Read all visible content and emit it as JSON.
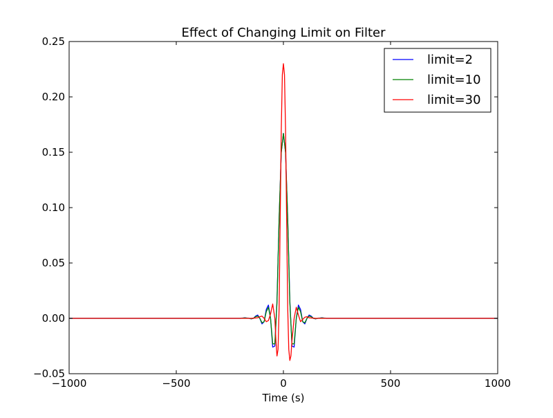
{
  "chart_data": {
    "type": "line",
    "title": "Effect of Changing Limit on Filter",
    "xlabel": "Time (s)",
    "ylabel": "",
    "xlim": [
      -1000,
      1000
    ],
    "ylim": [
      -0.05,
      0.25
    ],
    "xticks": [
      -1000,
      -500,
      0,
      500,
      1000
    ],
    "xtick_labels": [
      "−1000",
      "−500",
      "0",
      "500",
      "1000"
    ],
    "yticks": [
      -0.05,
      0.0,
      0.05,
      0.1,
      0.15,
      0.2,
      0.25
    ],
    "ytick_labels": [
      "−0.05",
      "0.00",
      "0.05",
      "0.10",
      "0.15",
      "0.20",
      "0.25"
    ],
    "grid": false,
    "legend_position": "top-right",
    "series": [
      {
        "name": "limit=2",
        "color": "#0000ff",
        "x": [
          -1000,
          -300,
          -250,
          -200,
          -180,
          -160,
          -150,
          -140,
          -130,
          -120,
          -110,
          -100,
          -90,
          -80,
          -70,
          -60,
          -50,
          -40,
          -30,
          -20,
          -10,
          0,
          10,
          20,
          30,
          40,
          50,
          60,
          70,
          80,
          90,
          100,
          110,
          120,
          130,
          140,
          150,
          160,
          180,
          200,
          250,
          300,
          1000
        ],
        "y": [
          0,
          0,
          0,
          0,
          0.0005,
          0,
          -0.0005,
          0,
          0.002,
          0.003,
          0,
          -0.005,
          -0.003,
          0.008,
          0.012,
          0,
          -0.026,
          -0.025,
          0.016,
          0.09,
          0.15,
          0.167,
          0.15,
          0.09,
          0.016,
          -0.025,
          -0.026,
          0,
          0.012,
          0.008,
          -0.003,
          -0.005,
          0,
          0.003,
          0.002,
          0,
          -0.0005,
          0,
          0.0005,
          0,
          0,
          0,
          0
        ]
      },
      {
        "name": "limit=10",
        "color": "#008000",
        "x": [
          -1000,
          -300,
          -250,
          -200,
          -180,
          -160,
          -150,
          -140,
          -130,
          -120,
          -110,
          -100,
          -90,
          -80,
          -70,
          -60,
          -50,
          -40,
          -30,
          -20,
          -10,
          0,
          10,
          20,
          30,
          40,
          50,
          60,
          70,
          80,
          90,
          100,
          110,
          120,
          130,
          140,
          150,
          160,
          180,
          200,
          250,
          300,
          1000
        ],
        "y": [
          0,
          0,
          0,
          0,
          0.0004,
          0,
          -0.0004,
          0,
          0.0015,
          0.002,
          0,
          -0.004,
          -0.003,
          0.006,
          0.01,
          0,
          -0.023,
          -0.023,
          0.014,
          0.09,
          0.15,
          0.167,
          0.15,
          0.09,
          0.014,
          -0.023,
          -0.023,
          0,
          0.01,
          0.006,
          -0.003,
          -0.004,
          0,
          0.002,
          0.0015,
          0,
          -0.0004,
          0,
          0.0004,
          0,
          0,
          0,
          0
        ]
      },
      {
        "name": "limit=30",
        "color": "#ff0000",
        "x": [
          -1000,
          -200,
          -150,
          -120,
          -110,
          -100,
          -90,
          -80,
          -70,
          -60,
          -50,
          -40,
          -35,
          -30,
          -25,
          -20,
          -15,
          -10,
          -5,
          0,
          5,
          10,
          15,
          20,
          25,
          30,
          35,
          40,
          50,
          60,
          70,
          80,
          90,
          100,
          110,
          120,
          150,
          200,
          1000
        ],
        "y": [
          0,
          0,
          0,
          0.0005,
          0.0015,
          0.002,
          0,
          -0.003,
          -0.002,
          0.004,
          0.013,
          0,
          -0.02,
          -0.034,
          -0.028,
          0.01,
          0.09,
          0.17,
          0.22,
          0.23,
          0.22,
          0.17,
          0.09,
          0.01,
          -0.028,
          -0.038,
          -0.034,
          -0.02,
          0,
          0.01,
          0.003,
          -0.003,
          -0.001,
          0.001,
          0.0015,
          0.0005,
          0,
          0,
          0
        ]
      }
    ]
  }
}
